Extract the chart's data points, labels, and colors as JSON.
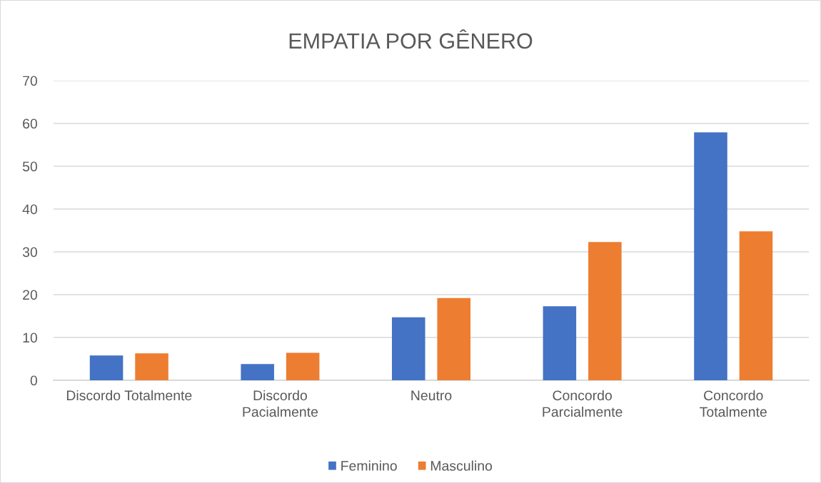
{
  "chart_data": {
    "type": "bar",
    "title": "EMPATIA POR GÊNERO",
    "categories": [
      "Discordo Totalmente",
      "Discordo\nPacialmente",
      "Neutro",
      "Concordo\nParcialmente",
      "Concordo\nTotalmente"
    ],
    "series": [
      {
        "name": "Feminino",
        "color": "#4472c4",
        "values": [
          5.8,
          3.8,
          14.7,
          17.3,
          57.9
        ]
      },
      {
        "name": "Masculino",
        "color": "#ed7d31",
        "values": [
          6.3,
          6.4,
          19.2,
          32.3,
          34.8
        ]
      }
    ],
    "ylim": [
      0,
      70
    ],
    "yticks": [
      0,
      10,
      20,
      30,
      40,
      50,
      60,
      70
    ],
    "grid": "y",
    "legend": "bottom"
  }
}
